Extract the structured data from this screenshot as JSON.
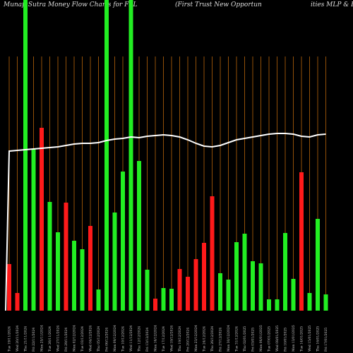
{
  "chart_data": {
    "type": "bar",
    "title": "MunafaSutra  Money Flow  Charts for FPL",
    "subtitle": "(First Trust New  Opportun",
    "subtitle_tail": "ities MLP & E",
    "categories": [
      "Tue 19/11/2024",
      "Wed 20/11/2024",
      "Thu 21/11/2024",
      "Fri 22/11/2024",
      "Mon 25/11/2024",
      "Tue 26/11/2024",
      "Wed 27/11/2024",
      "Fri 29/11/2024",
      "Mon 02/12/2024",
      "Tue 03/12/2024",
      "Wed 04/12/2024",
      "Thu 05/12/2024",
      "Fri 06/12/2024",
      "Mon 09/12/2024",
      "Tue 10/12/2024",
      "Wed 11/12/2024",
      "Thu 12/12/2024",
      "Fri 13/12/2024",
      "Mon 16/12/2024",
      "Tue 17/12/2024",
      "Wed 18/12/2024",
      "Thu 19/12/2024",
      "Fri 20/12/2024",
      "Mon 23/12/2024",
      "Tue 24/12/2024",
      "Thu 26/12/2024",
      "Fri 27/12/2024",
      "Mon 30/12/2024",
      "Tue 31/12/2024",
      "Thu 02/01/2025",
      "Fri 03/01/2025",
      "Mon 06/01/2025",
      "Tue 07/01/2025",
      "Wed 08/01/2025",
      "Fri 10/01/2025",
      "Mon 13/01/2025",
      "Tue 14/01/2025",
      "Wed 15/01/2025",
      "Thu 16/01/2025",
      "Fri 17/01/2025"
    ],
    "series": [
      {
        "values": [
          66,
          25,
          440,
          229,
          259,
          154,
          111,
          153,
          99,
          87,
          120,
          30,
          440,
          139,
          197,
          440,
          212,
          58,
          17,
          32,
          31,
          59,
          48,
          73,
          96,
          162,
          53,
          44,
          97,
          109,
          70,
          67,
          16,
          16,
          110,
          45,
          196,
          25,
          130,
          23
        ],
        "colors": [
          "#ff1a1a",
          "#ff1a1a",
          "#22ee22",
          "#22ee22",
          "#ff1a1a",
          "#22ee22",
          "#22ee22",
          "#ff1a1a",
          "#22ee22",
          "#22ee22",
          "#ff1a1a",
          "#22ee22",
          "#22ee22",
          "#22ee22",
          "#22ee22",
          "#22ee22",
          "#22ee22",
          "#22ee22",
          "#ff1a1a",
          "#22ee22",
          "#22ee22",
          "#ff1a1a",
          "#ff1a1a",
          "#ff1a1a",
          "#ff1a1a",
          "#ff1a1a",
          "#22ee22",
          "#22ee22",
          "#22ee22",
          "#22ee22",
          "#22ee22",
          "#22ee22",
          "#22ee22",
          "#22ee22",
          "#22ee22",
          "#22ee22",
          "#ff1a1a",
          "#22ee22",
          "#22ee22",
          "#22ee22"
        ]
      },
      {
        "type": "line",
        "color": "#ffffff",
        "values": [
          226,
          227,
          228,
          229,
          230,
          231,
          232,
          234,
          236,
          237,
          237,
          238,
          241,
          243,
          244,
          246,
          245,
          247,
          248,
          249,
          248,
          246,
          242,
          237,
          233,
          232,
          234,
          238,
          242,
          244,
          246,
          248,
          250,
          251,
          251,
          250,
          247,
          246,
          249,
          250
        ]
      }
    ],
    "ylim": [
      0,
      440
    ],
    "grid_color": "#b8650a"
  }
}
